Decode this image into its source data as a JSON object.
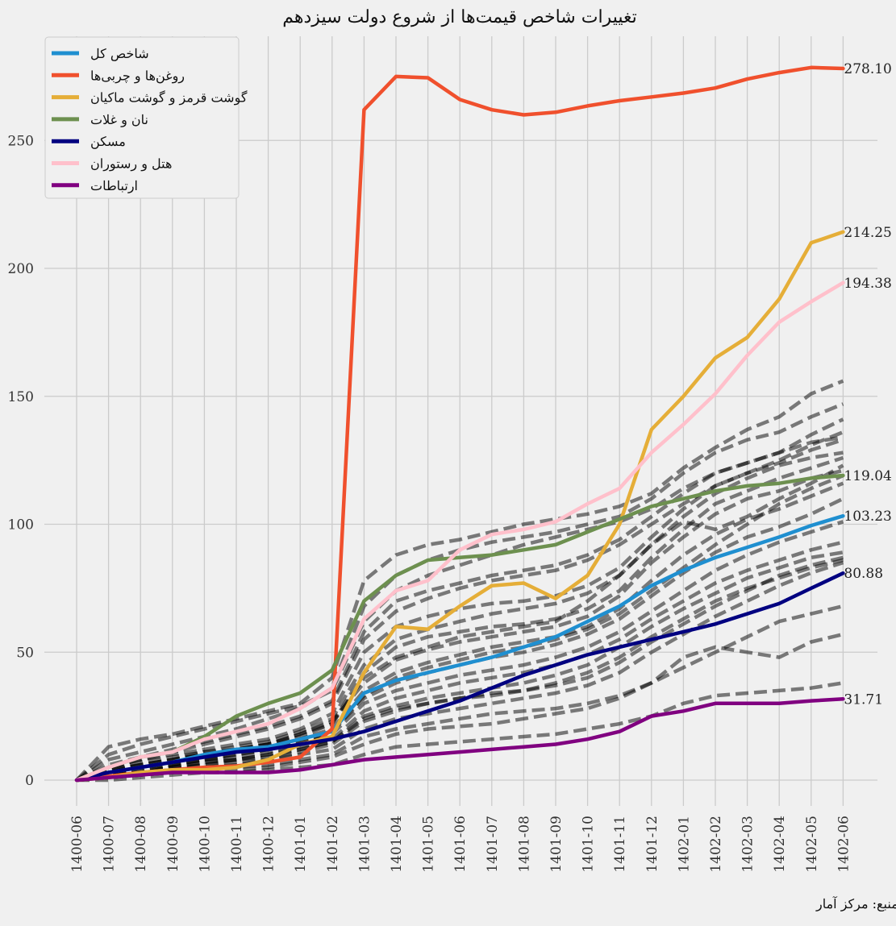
{
  "chart_data": {
    "type": "line",
    "title": "تغییرات شاخص قیمت‌ها از شروع دولت سیزدهم",
    "source": "منبع: مرکز آمار",
    "xlabel": "",
    "ylabel": "",
    "ylim": [
      -8,
      290
    ],
    "y_ticks": [
      0,
      50,
      100,
      150,
      200,
      250
    ],
    "grid": true,
    "legend_position": "top-left",
    "categories": [
      "1400-06",
      "1400-07",
      "1400-08",
      "1400-09",
      "1400-10",
      "1400-11",
      "1400-12",
      "1401-01",
      "1401-02",
      "1401-03",
      "1401-04",
      "1401-05",
      "1401-06",
      "1401-07",
      "1401-08",
      "1401-09",
      "1401-10",
      "1401-11",
      "1401-12",
      "1402-01",
      "1402-02",
      "1402-03",
      "1402-04",
      "1402-05",
      "1402-06"
    ],
    "series": [
      {
        "name": "شاخص کل",
        "color": "#1f8fd0",
        "end_label": "103.23",
        "values": [
          0,
          3,
          5,
          7,
          10,
          12,
          13,
          16,
          19,
          34,
          39,
          42,
          45,
          48,
          52,
          56,
          62,
          68,
          76,
          82,
          87,
          91,
          95,
          99.5,
          103.23
        ]
      },
      {
        "name": "روغن‌ها و چربی‌ها",
        "color": "#f0502d",
        "end_label": "278.10",
        "values": [
          0,
          1.5,
          3,
          4,
          5,
          5.5,
          7,
          9,
          20,
          262,
          275,
          274.5,
          266,
          262,
          260,
          261,
          263.5,
          265.5,
          267,
          268.5,
          270.5,
          274,
          276.5,
          278.5,
          278.1
        ]
      },
      {
        "name": "گوشت قرمز و گوشت ماکیان",
        "color": "#e5ae38",
        "end_label": "214.25",
        "values": [
          0,
          1,
          3,
          4,
          4,
          5,
          8,
          14,
          17,
          42,
          60,
          59,
          68,
          76,
          77,
          71,
          80,
          100,
          137,
          150,
          165,
          173,
          188,
          210,
          214.25
        ]
      },
      {
        "name": "نان و غلات",
        "color": "#6d904f",
        "end_label": "119.04",
        "values": [
          0,
          5,
          9,
          11,
          17,
          25,
          30,
          34,
          43,
          70,
          80,
          86,
          87,
          88,
          90,
          92,
          97,
          102,
          107,
          110,
          113,
          115,
          116,
          118,
          119.04
        ]
      },
      {
        "name": "مسکن",
        "color": "#000080",
        "end_label": "80.88",
        "values": [
          0,
          3,
          5,
          7,
          9,
          11,
          12,
          14,
          16,
          19,
          23,
          27,
          31,
          36,
          41,
          45,
          49,
          52,
          55,
          58,
          61,
          65,
          69,
          75,
          80.88
        ]
      },
      {
        "name": "هتل و رستوران",
        "color": "#ffc0cb",
        "end_label": "194.38",
        "values": [
          0,
          5,
          9,
          11,
          16,
          19,
          22,
          28,
          36,
          63,
          74,
          78,
          90,
          96,
          98,
          101,
          108,
          114,
          128,
          139,
          151,
          166,
          179,
          187,
          194.38
        ]
      },
      {
        "name": "ارتباطات",
        "color": "#800080",
        "end_label": "31.71",
        "values": [
          0,
          1,
          2,
          3,
          3,
          3,
          3,
          4,
          6,
          8,
          9,
          10,
          11,
          12,
          13,
          14,
          16,
          19,
          25,
          27,
          30,
          30,
          30,
          31,
          31.71
        ]
      }
    ],
    "background_series": {
      "style": "dashed",
      "color": "#000000",
      "opacity": 0.5,
      "values": [
        [
          0,
          13,
          16,
          18,
          21,
          24,
          27,
          30,
          40,
          78,
          88,
          92,
          94,
          97,
          100,
          102,
          104,
          107,
          112,
          122,
          130,
          137,
          142,
          151,
          156
        ],
        [
          0,
          8,
          11,
          14,
          17,
          20,
          24,
          28,
          36,
          68,
          80,
          86,
          90,
          93,
          95,
          97,
          100,
          103,
          110,
          120,
          128,
          133,
          136,
          142,
          147
        ],
        [
          0,
          6,
          9,
          12,
          15,
          18,
          21,
          25,
          31,
          58,
          70,
          74,
          77,
          80,
          82,
          84,
          88,
          94,
          103,
          112,
          120,
          124,
          128,
          132,
          134
        ],
        [
          0,
          5,
          8,
          10,
          12,
          14,
          16,
          20,
          26,
          50,
          60,
          64,
          67,
          69,
          70,
          72,
          76,
          83,
          95,
          106,
          115,
          120,
          124,
          129,
          133
        ],
        [
          0,
          4,
          6,
          8,
          10,
          12,
          14,
          17,
          22,
          42,
          52,
          56,
          58,
          60,
          61,
          63,
          67,
          74,
          87,
          98,
          108,
          113,
          118,
          122,
          126
        ],
        [
          0,
          4,
          7,
          9,
          11,
          12,
          14,
          18,
          23,
          38,
          47,
          51,
          54,
          56,
          58,
          60,
          64,
          72,
          85,
          95,
          104,
          110,
          113,
          118,
          121
        ],
        [
          0,
          3,
          5,
          7,
          9,
          11,
          13,
          16,
          20,
          35,
          42,
          46,
          49,
          52,
          54,
          56,
          60,
          67,
          78,
          88,
          96,
          102,
          106,
          111,
          116
        ],
        [
          0,
          3,
          5,
          6,
          8,
          10,
          12,
          15,
          19,
          32,
          38,
          42,
          45,
          48,
          50,
          53,
          57,
          63,
          72,
          81,
          89,
          95,
          99,
          104,
          110
        ],
        [
          0,
          2,
          4,
          6,
          8,
          9,
          11,
          14,
          18,
          30,
          35,
          38,
          41,
          43,
          45,
          48,
          52,
          58,
          66,
          74,
          82,
          88,
          93,
          97,
          101
        ],
        [
          0,
          2,
          3,
          5,
          7,
          8,
          10,
          13,
          16,
          27,
          32,
          35,
          38,
          40,
          42,
          45,
          49,
          55,
          63,
          70,
          77,
          82,
          86,
          90,
          93
        ],
        [
          0,
          2,
          3,
          5,
          6,
          8,
          9,
          12,
          15,
          25,
          29,
          32,
          34,
          36,
          38,
          41,
          45,
          52,
          60,
          67,
          73,
          79,
          83,
          87,
          89
        ],
        [
          0,
          1,
          3,
          4,
          6,
          7,
          8,
          11,
          14,
          23,
          27,
          30,
          32,
          34,
          35,
          37,
          40,
          46,
          54,
          61,
          68,
          74,
          80,
          84,
          87
        ],
        [
          0,
          1,
          2,
          4,
          5,
          6,
          8,
          10,
          12,
          20,
          24,
          26,
          28,
          30,
          32,
          34,
          37,
          42,
          50,
          57,
          64,
          70,
          76,
          81,
          85
        ],
        [
          0,
          1,
          2,
          3,
          4,
          5,
          6,
          8,
          10,
          17,
          20,
          22,
          24,
          26,
          27,
          28,
          30,
          33,
          38,
          44,
          50,
          56,
          62,
          65,
          68
        ],
        [
          0,
          1,
          2,
          3,
          4,
          4,
          5,
          7,
          9,
          14,
          18,
          20,
          21,
          22,
          24,
          26,
          28,
          32,
          38,
          48,
          52,
          50,
          48,
          54,
          57
        ],
        [
          0,
          0,
          1,
          2,
          3,
          3,
          4,
          5,
          6,
          10,
          13,
          14,
          15,
          16,
          17,
          18,
          20,
          22,
          25,
          30,
          33,
          34,
          35,
          36,
          38
        ],
        [
          0,
          10,
          14,
          17,
          20,
          23,
          26,
          29,
          35,
          62,
          74,
          80,
          84,
          88,
          92,
          95,
          98,
          101,
          106,
          114,
          120,
          124,
          128,
          135,
          141
        ],
        [
          0,
          5,
          8,
          11,
          14,
          17,
          20,
          24,
          30,
          55,
          66,
          71,
          75,
          78,
          80,
          82,
          86,
          92,
          100,
          108,
          115,
          120,
          125,
          131,
          136
        ],
        [
          0,
          3,
          6,
          8,
          10,
          12,
          14,
          18,
          22,
          40,
          48,
          52,
          56,
          58,
          60,
          62,
          70,
          80,
          92,
          101,
          98,
          103,
          110,
          116,
          123
        ],
        [
          0,
          2,
          4,
          6,
          8,
          10,
          12,
          15,
          19,
          33,
          40,
          44,
          47,
          50,
          52,
          55,
          59,
          65,
          74,
          83,
          92,
          100,
          108,
          114,
          119
        ],
        [
          0,
          4,
          6,
          8,
          11,
          13,
          15,
          19,
          24,
          45,
          55,
          59,
          62,
          65,
          67,
          69,
          73,
          80,
          92,
          103,
          112,
          118,
          123,
          126,
          128
        ],
        [
          0,
          2,
          3,
          5,
          7,
          8,
          10,
          12,
          15,
          24,
          28,
          30,
          32,
          33,
          35,
          38,
          42,
          48,
          56,
          63,
          70,
          75,
          79,
          83,
          86
        ]
      ]
    }
  }
}
